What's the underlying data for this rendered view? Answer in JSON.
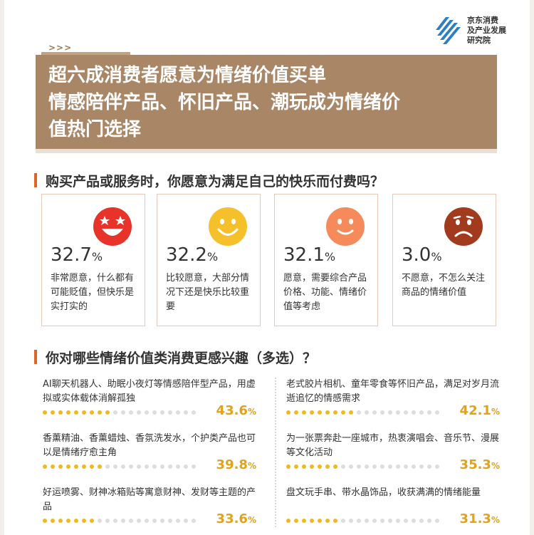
{
  "logo": {
    "text": "京东消费\n及产业发展\n研究院",
    "icon": "jd-research-logo-icon"
  },
  "header": {
    "arrows": ">>>",
    "title_lines": [
      "超六成消费者愿意为情绪价值买单",
      "情感陪伴产品、怀旧产品、潮玩成为情绪价",
      "值热门选择"
    ]
  },
  "survey1": {
    "question": "购买产品或服务时，你愿意为满足自己的快乐而付费吗？",
    "options": [
      {
        "value": "32.7",
        "unit": "%",
        "desc": "非常愿意，什么都有可能贬值，但快乐是实打实的",
        "icon": "star-eyes-face-icon",
        "color": "#e8332a"
      },
      {
        "value": "32.2",
        "unit": "%",
        "desc": "比较愿意，大部分情况下还是快乐比较重要",
        "icon": "smile-face-icon",
        "color": "#f5c02a"
      },
      {
        "value": "32.1",
        "unit": "%",
        "desc": "愿意，需要综合产品价格、功能、情绪价值等考虑",
        "icon": "mild-smile-face-icon",
        "color": "#f58a5a"
      },
      {
        "value": "3.0",
        "unit": "%",
        "desc": "不愿意，不怎么关注商品的情绪价值",
        "icon": "sad-face-icon",
        "color": "#a23a1e"
      }
    ]
  },
  "survey2": {
    "question": "你对哪些情绪价值类消费更感兴趣（多选）？",
    "left": [
      {
        "text": "AI聊天机器人、助眠小夜灯等情感陪伴型产品，用虚拟或实体载体消解孤独",
        "value": "43.6",
        "unit": "%",
        "fraction": 0.436
      },
      {
        "text": "香薰精油、香薰蜡烛、香氛洗发水，个护类产品也可以是情绪疗愈主角",
        "value": "39.8",
        "unit": "%",
        "fraction": 0.398
      },
      {
        "text": "好运喷雾、财神冰箱贴等寓意财神、发财等主题的产品",
        "value": "33.6",
        "unit": "%",
        "fraction": 0.336
      }
    ],
    "right": [
      {
        "text": "老式胶片相机、童年零食等怀旧产品，满足对岁月流逝追忆的情感需求",
        "value": "42.1",
        "unit": "%",
        "fraction": 0.421
      },
      {
        "text": "为一张票奔赴一座城市，热衷演唱会、音乐节、漫展等文化活动",
        "value": "35.3",
        "unit": "%",
        "fraction": 0.353
      },
      {
        "text": "盘文玩手串、带水晶饰品，收获满满的情绪能量",
        "value": "31.3",
        "unit": "%",
        "fraction": 0.313
      }
    ]
  },
  "colors": {
    "title_bg": "#a88666",
    "accent": "#e0632c",
    "dot_on": "#f2b822",
    "pct": "#e2a21a"
  }
}
